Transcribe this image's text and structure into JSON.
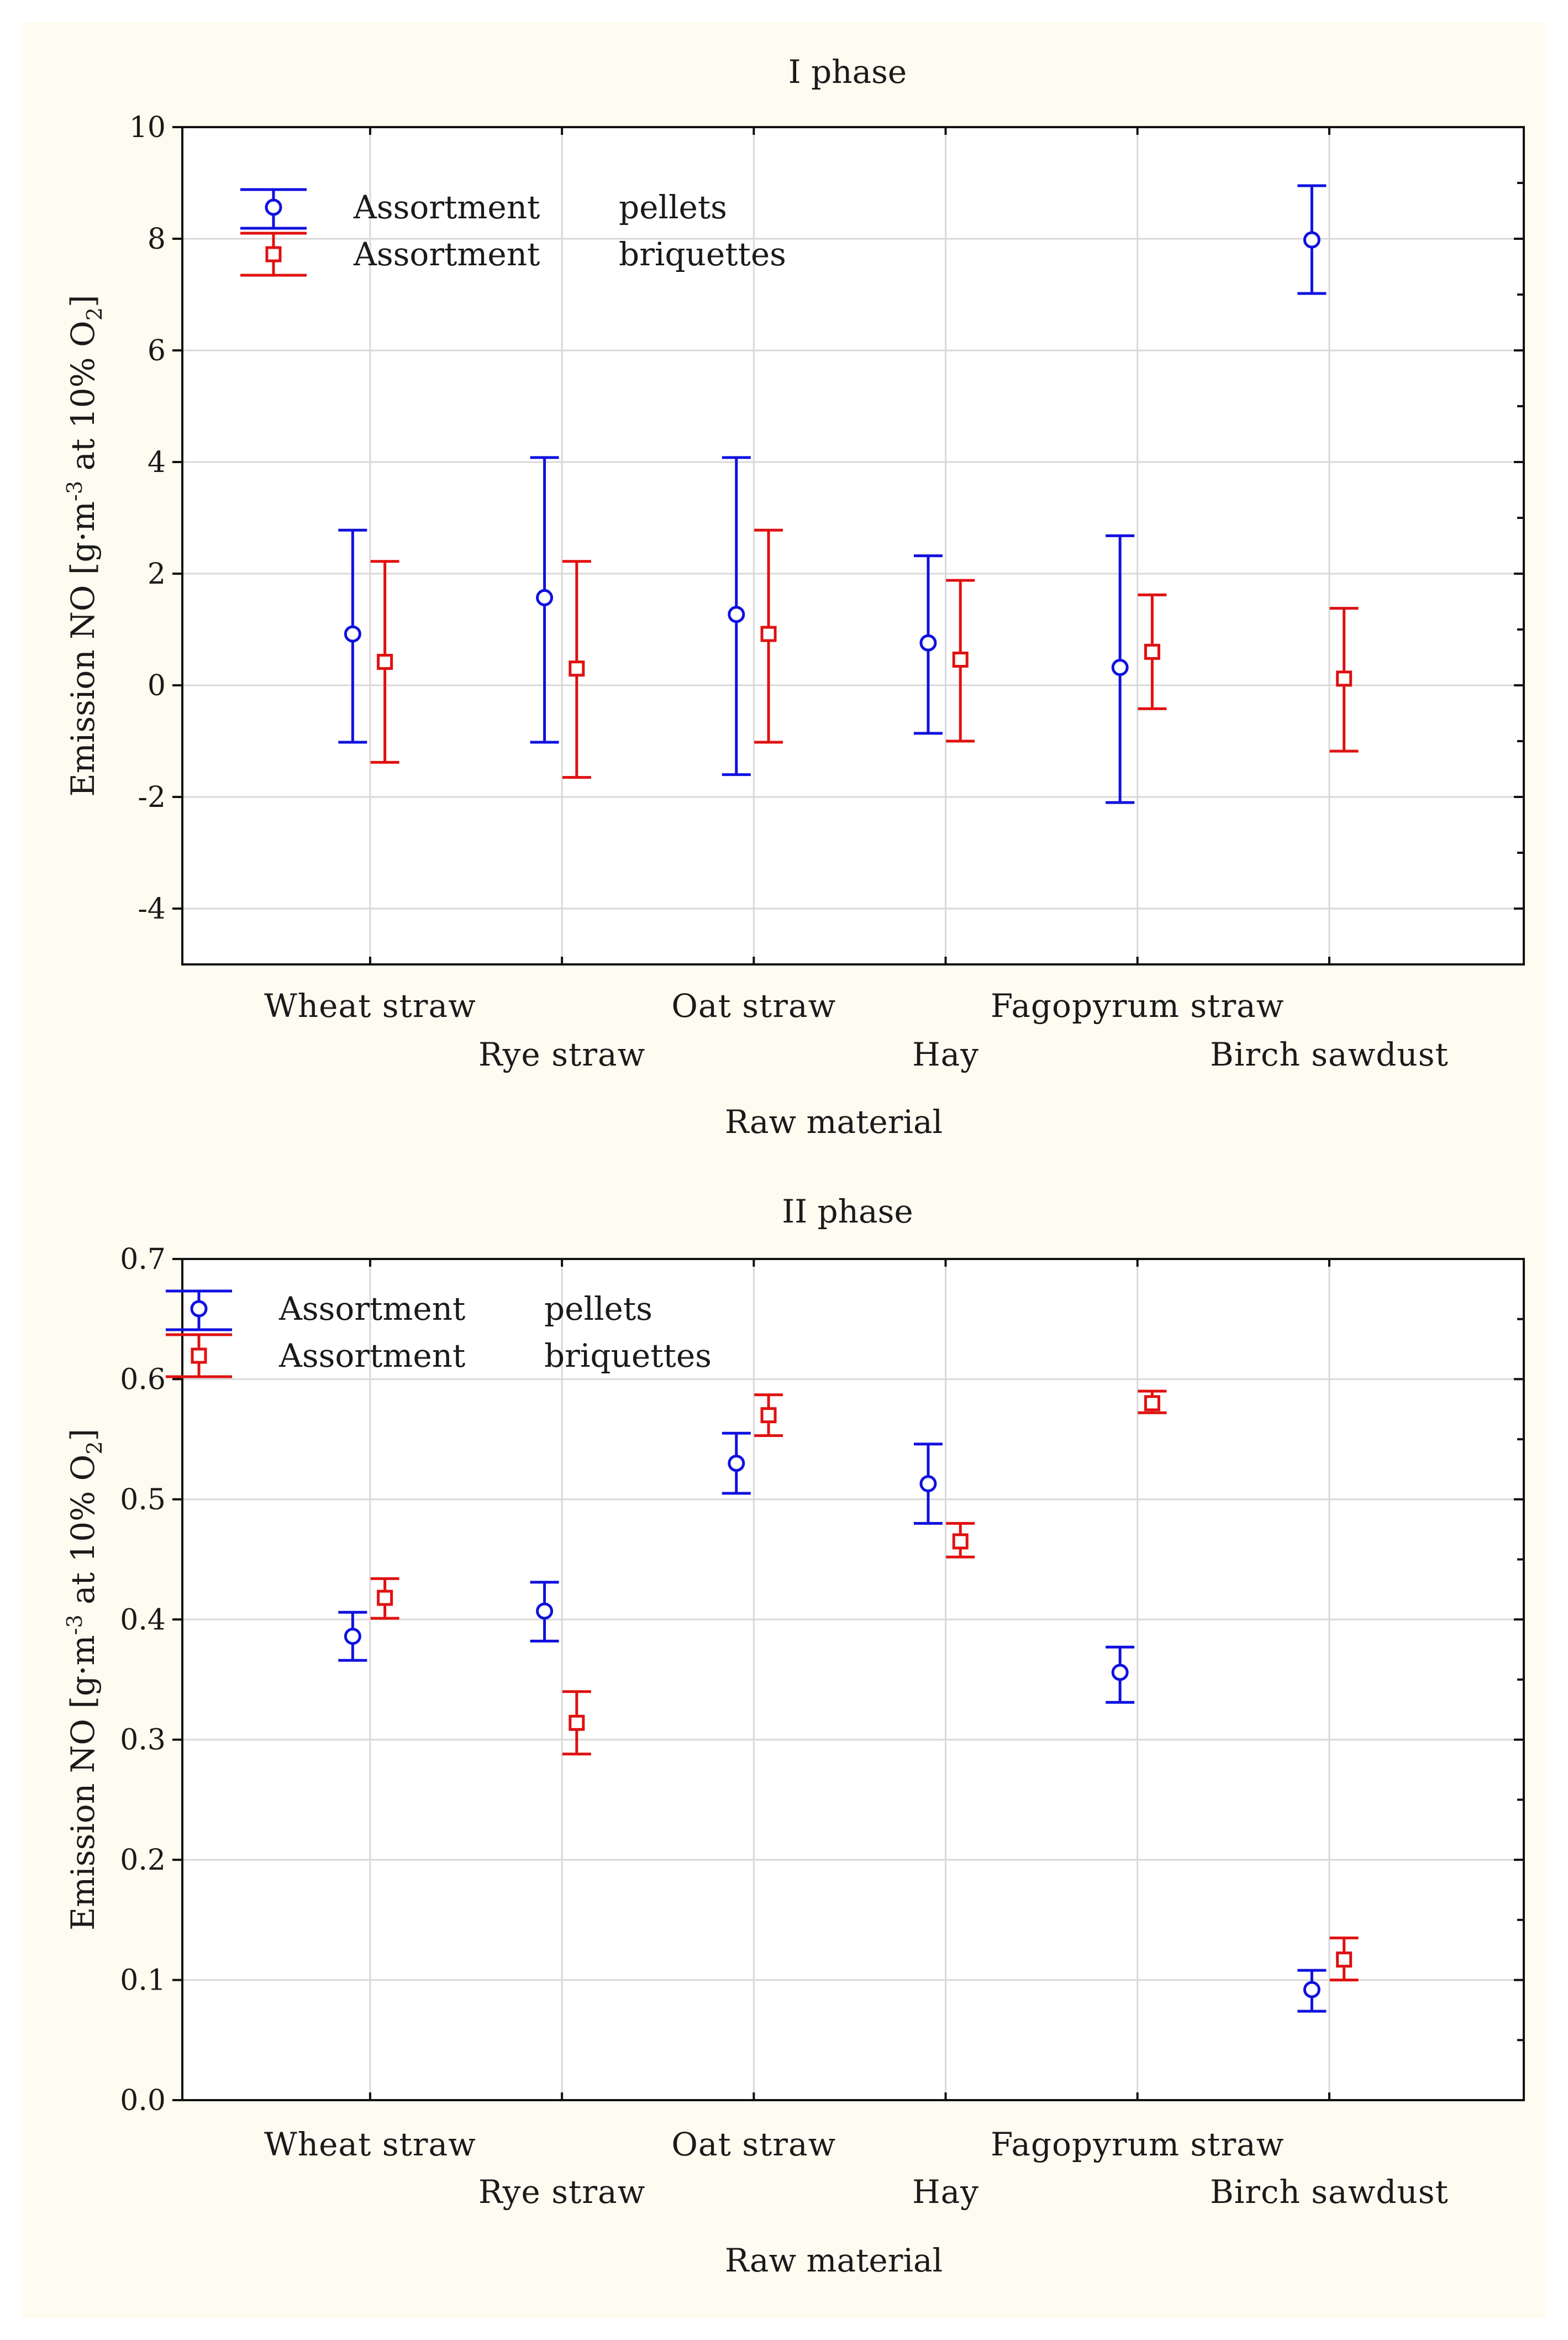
{
  "chart_data": [
    {
      "type": "scatter",
      "title": "I phase",
      "xlabel": "Raw material",
      "ylabel": "Emission NO [g·m⁻³ at 10% O₂]",
      "ylabel_parts": {
        "main": "Emission NO [g·m",
        "sup": "-3",
        "mid": " at 10% O",
        "sub": "2",
        "end": "]"
      },
      "ylim": [
        -5,
        10
      ],
      "yticks": [
        "10",
        "8",
        "6",
        "4",
        "2",
        "0",
        "-2",
        "-4"
      ],
      "ytick_values": [
        10,
        8,
        6,
        4,
        2,
        0,
        -2,
        -4
      ],
      "grid": true,
      "legend_position": "top-left",
      "categories": [
        "Wheat straw",
        "Rye straw",
        "Oat straw",
        "Hay",
        "Fagopyrum straw",
        "Birch sawdust"
      ],
      "series": [
        {
          "name": "pellets",
          "legend_label": "Assortment",
          "legend_value": "pellets",
          "marker": "circle",
          "color": "#1010e0",
          "values": [
            0.92,
            1.57,
            1.27,
            0.76,
            0.32,
            7.98
          ],
          "lower": [
            -1.02,
            -1.02,
            -1.6,
            -0.86,
            -2.1,
            7.02
          ],
          "upper": [
            2.78,
            4.08,
            4.08,
            2.32,
            2.68,
            8.95
          ]
        },
        {
          "name": "briquettes",
          "legend_label": "Assortment",
          "legend_value": "briquettes",
          "marker": "square",
          "color": "#e01010",
          "values": [
            0.42,
            0.3,
            0.92,
            0.46,
            0.6,
            0.12
          ],
          "lower": [
            -1.38,
            -1.65,
            -1.02,
            -1.0,
            -0.42,
            -1.18
          ],
          "upper": [
            2.22,
            2.22,
            2.78,
            1.88,
            1.62,
            1.38
          ]
        }
      ]
    },
    {
      "type": "scatter",
      "title": "II phase",
      "xlabel": "Raw material",
      "ylabel": "Emission NO [g·m⁻³ at 10% O₂]",
      "ylabel_parts": {
        "main": "Emission NO [g·m",
        "sup": "-3",
        "mid": " at 10% O",
        "sub": "2",
        "end": "]"
      },
      "ylim": [
        0,
        0.7
      ],
      "yticks": [
        "0.7",
        "0.6",
        "0.5",
        "0.4",
        "0.3",
        "0.2",
        "0.1",
        "0.0"
      ],
      "ytick_values": [
        0.7,
        0.6,
        0.5,
        0.4,
        0.3,
        0.2,
        0.1,
        0.0
      ],
      "grid": true,
      "legend_position": "top-left",
      "categories": [
        "Wheat straw",
        "Rye straw",
        "Oat straw",
        "Hay",
        "Fagopyrum straw",
        "Birch sawdust"
      ],
      "series": [
        {
          "name": "pellets",
          "legend_label": "Assortment",
          "legend_value": "pellets",
          "marker": "circle",
          "color": "#1010e0",
          "values": [
            0.386,
            0.407,
            0.53,
            0.513,
            0.356,
            0.092
          ],
          "lower": [
            0.366,
            0.382,
            0.505,
            0.48,
            0.331,
            0.074
          ],
          "upper": [
            0.406,
            0.431,
            0.555,
            0.546,
            0.377,
            0.108
          ]
        },
        {
          "name": "briquettes",
          "legend_label": "Assortment",
          "legend_value": "briquettes",
          "marker": "square",
          "color": "#e01010",
          "values": [
            0.418,
            0.314,
            0.57,
            0.465,
            0.58,
            0.117
          ],
          "lower": [
            0.401,
            0.288,
            0.553,
            0.452,
            0.572,
            0.1
          ],
          "upper": [
            0.434,
            0.34,
            0.587,
            0.48,
            0.59,
            0.135
          ]
        }
      ]
    }
  ]
}
